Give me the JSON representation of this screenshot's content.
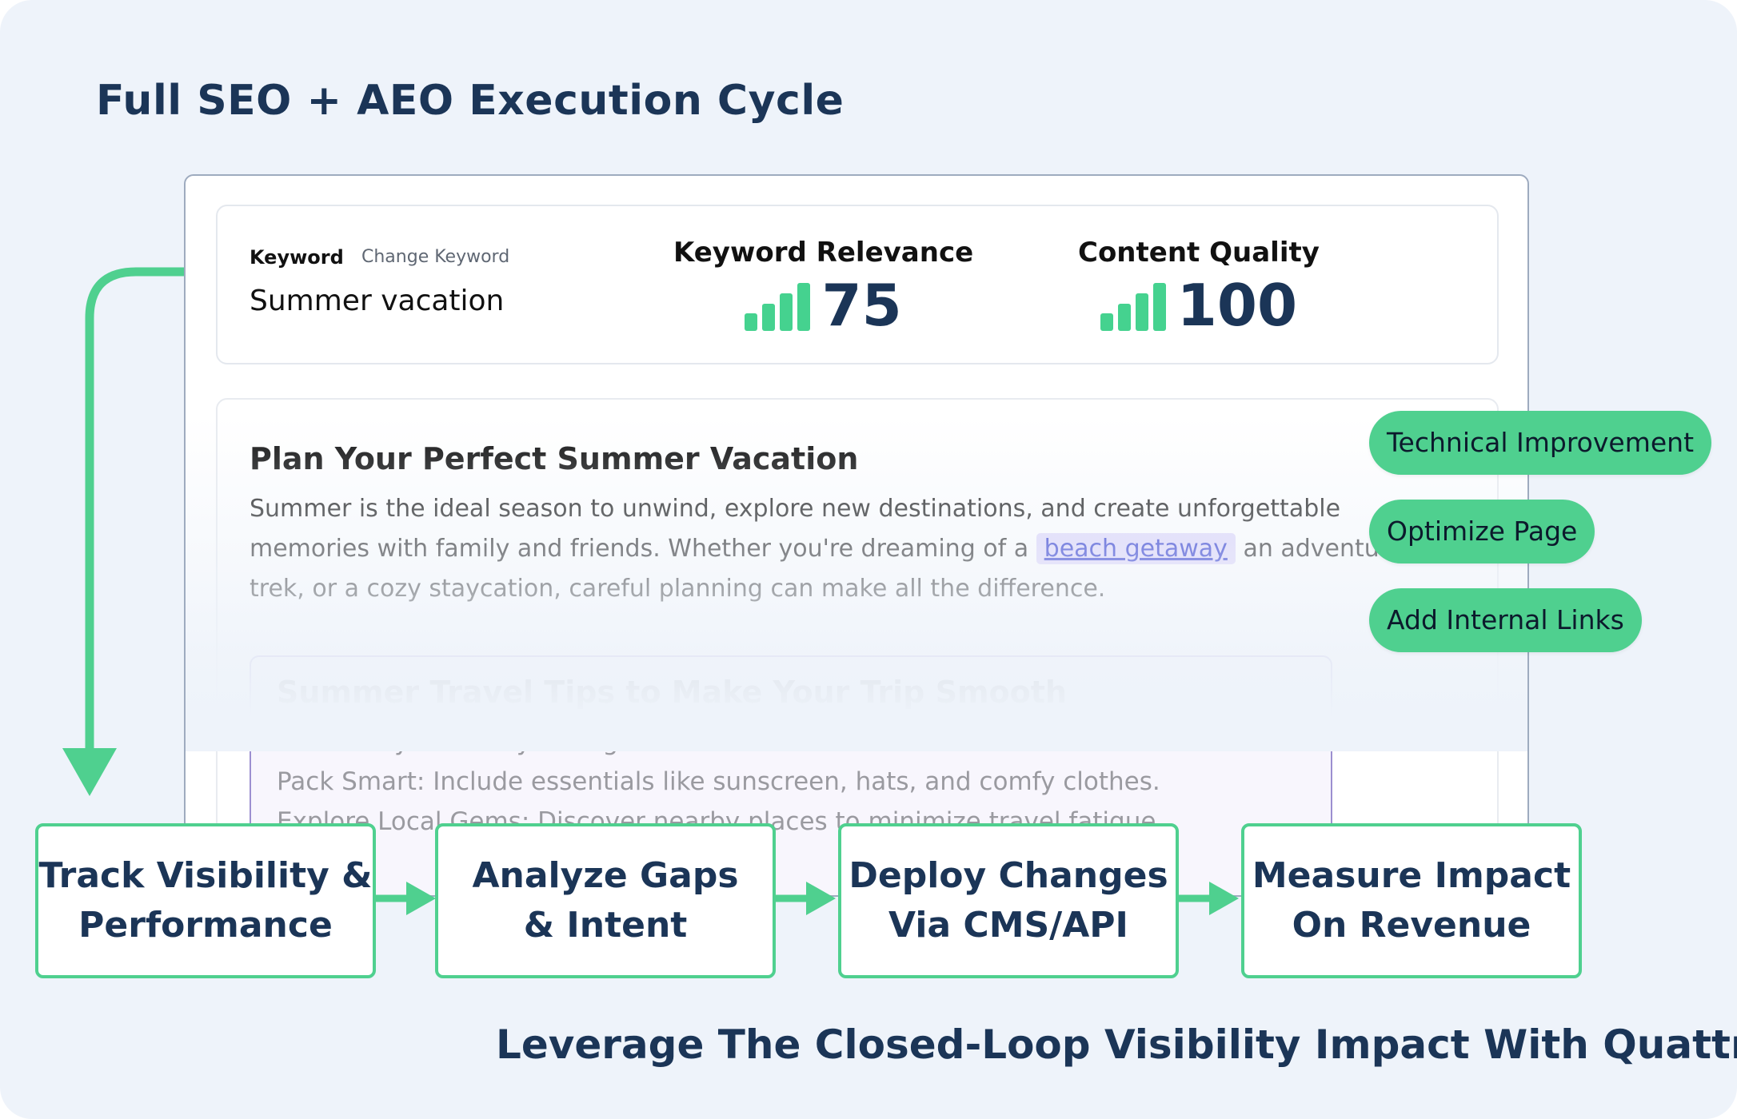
{
  "header": {
    "title": "Full SEO + AEO Execution Cycle"
  },
  "metrics": {
    "keyword_label": "Keyword",
    "change_keyword": "Change Keyword",
    "keyword_value": "Summer vacation",
    "keyword_relevance": {
      "label": "Keyword Relevance",
      "value": "75"
    },
    "content_quality": {
      "label": "Content Quality",
      "value": "100"
    }
  },
  "article": {
    "title": "Plan Your Perfect Summer Vacation",
    "body_part1": "Summer is the ideal season to unwind, explore new destinations, and create unforgettable memories with family and friends. Whether you're dreaming of a ",
    "link_text": "beach getaway",
    "body_part2": " an adventurous trek, or a cozy staycation, careful planning can make all the difference.",
    "tips": {
      "title": "Summer Travel Tips to Make Your Trip Smooth",
      "line1": "Book Early: Secure your flights and accommodations in advance.",
      "line2": "Pack Smart: Include essentials like sunscreen, hats, and comfy clothes.",
      "line3": "Explore Local Gems: Discover nearby places to minimize travel fatigue."
    }
  },
  "actions": [
    "Technical Improvement",
    "Optimize Page",
    "Add Internal Links"
  ],
  "cycle_steps": [
    {
      "line1": "Track Visibility &",
      "line2": "Performance"
    },
    {
      "line1": "Analyze Gaps",
      "line2": "& Intent"
    },
    {
      "line1": "Deploy Changes",
      "line2": "Via CMS/API"
    },
    {
      "line1": "Measure Impact",
      "line2": "On Revenue"
    }
  ],
  "footer": {
    "tagline": "Leverage The Closed-Loop Visibility Impact With Quattr"
  },
  "colors": {
    "accent": "#4fd08f",
    "navy": "#1b3557",
    "link_bg": "#dcd4fb",
    "background": "#eef3fa"
  }
}
